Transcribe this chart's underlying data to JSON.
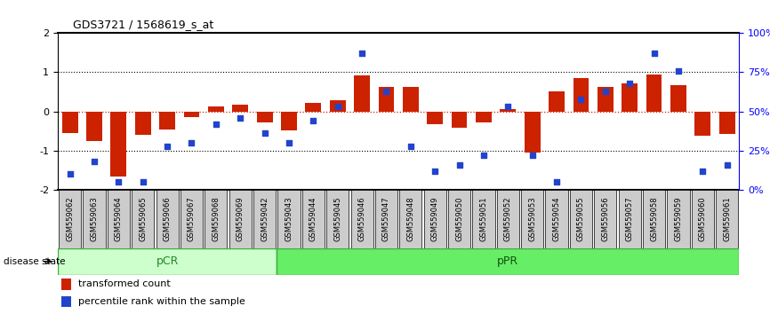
{
  "title": "GDS3721 / 1568619_s_at",
  "samples": [
    "GSM559062",
    "GSM559063",
    "GSM559064",
    "GSM559065",
    "GSM559066",
    "GSM559067",
    "GSM559068",
    "GSM559069",
    "GSM559042",
    "GSM559043",
    "GSM559044",
    "GSM559045",
    "GSM559046",
    "GSM559047",
    "GSM559048",
    "GSM559049",
    "GSM559050",
    "GSM559051",
    "GSM559052",
    "GSM559053",
    "GSM559054",
    "GSM559055",
    "GSM559056",
    "GSM559057",
    "GSM559058",
    "GSM559059",
    "GSM559060",
    "GSM559061"
  ],
  "bar_values": [
    -0.55,
    -0.75,
    -1.65,
    -0.6,
    -0.45,
    -0.15,
    0.12,
    0.18,
    -0.28,
    -0.48,
    0.22,
    0.28,
    0.93,
    0.62,
    0.62,
    -0.32,
    -0.42,
    -0.28,
    0.05,
    -1.05,
    0.52,
    0.85,
    0.62,
    0.72,
    0.95,
    0.68,
    -0.62,
    -0.58
  ],
  "dot_values": [
    10,
    18,
    5,
    5,
    28,
    30,
    42,
    46,
    36,
    30,
    44,
    53,
    87,
    63,
    28,
    12,
    16,
    22,
    53,
    22,
    5,
    58,
    63,
    68,
    87,
    76,
    12,
    16
  ],
  "pcr_count": 9,
  "ppr_count": 19,
  "ylim": [
    -2,
    2
  ],
  "right_ylim": [
    0,
    100
  ],
  "right_yticks": [
    0,
    25,
    50,
    75,
    100
  ],
  "right_yticklabels": [
    "0%",
    "25%",
    "50%",
    "75%",
    "100%"
  ],
  "left_yticks": [
    -2,
    -1,
    0,
    1,
    2
  ],
  "dotted_hlines": [
    -1,
    0,
    1
  ],
  "bar_color": "#cc2200",
  "dot_color": "#2244cc",
  "pcr_facecolor": "#ccffcc",
  "ppr_facecolor": "#66ee66",
  "legend_bar_label": "transformed count",
  "legend_dot_label": "percentile rank within the sample",
  "disease_state_label": "disease state",
  "pcr_label": "pCR",
  "ppr_label": "pPR"
}
